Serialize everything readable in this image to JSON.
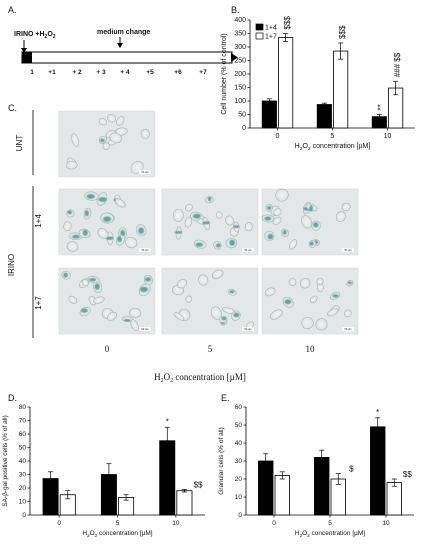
{
  "panels": {
    "a": {
      "letter": "A.",
      "treatment_label_main": "IRINO +H",
      "treatment_label_sub": "2",
      "treatment_label_end": "O",
      "treatment_label_sub2": "2",
      "medium_change_label": "medium change",
      "days": [
        "1",
        "+1",
        "+ 2",
        "+ 3",
        "+ 4",
        "+5",
        "+6",
        "+7"
      ]
    },
    "b": {
      "letter": "B."
    },
    "c": {
      "letter": "C.",
      "row_labels": [
        "UNT",
        "1+4",
        "1+7"
      ],
      "group_label": "IRINO",
      "col_labels": [
        "0",
        "5",
        "10"
      ],
      "scale_bar_text": "50 µm",
      "xlabel_main": "H",
      "xlabel_sub": "2",
      "xlabel_mid": "O",
      "xlabel_sub2": "2",
      "xlabel_end": " concentration [µM]"
    },
    "d": {
      "letter": "D."
    },
    "e": {
      "letter": "E."
    }
  },
  "chart_data": [
    {
      "id": "B",
      "type": "bar",
      "categories": [
        "0",
        "5",
        "10"
      ],
      "series": [
        {
          "name": "1+4",
          "color": "#000000",
          "values": [
            100,
            87,
            42
          ],
          "errors": [
            8,
            5,
            8
          ]
        },
        {
          "name": "1+7",
          "color": "#ffffff",
          "values": [
            335,
            285,
            148
          ],
          "errors": [
            15,
            30,
            25
          ]
        }
      ],
      "annotations": [
        {
          "category": "0",
          "series": "1+7",
          "text": "$$$"
        },
        {
          "category": "5",
          "series": "1+7",
          "text": "$$$"
        },
        {
          "category": "10",
          "series": "1+4",
          "text": "**"
        },
        {
          "category": "10",
          "series": "1+7",
          "text": "###  $$"
        }
      ],
      "ylabel": "Cell number (% of control)",
      "xlabel": "H2O2 concentration [µM]",
      "ylim": [
        0,
        400
      ],
      "yticks": [
        0,
        50,
        100,
        150,
        200,
        250,
        300,
        350,
        400
      ],
      "legend": "top-left"
    },
    {
      "id": "D",
      "type": "bar",
      "categories": [
        "0",
        "5",
        "10"
      ],
      "series": [
        {
          "name": "",
          "color": "#000000",
          "values": [
            27,
            30,
            55
          ],
          "errors": [
            5,
            8,
            10
          ]
        },
        {
          "name": "",
          "color": "#ffffff",
          "values": [
            15,
            13,
            18
          ],
          "errors": [
            3,
            2,
            1
          ]
        }
      ],
      "annotations": [
        {
          "category": "10",
          "series": 0,
          "text": "*"
        },
        {
          "category": "10",
          "series": 1,
          "text": "$$"
        }
      ],
      "ylabel": "SA-β-gal positive cells (% of all)",
      "xlabel": "H2O2 concentration [µM]",
      "ylim": [
        0,
        80
      ],
      "yticks": [
        0,
        10,
        20,
        30,
        40,
        50,
        60,
        70,
        80
      ]
    },
    {
      "id": "E",
      "type": "bar",
      "categories": [
        "0",
        "5",
        "10"
      ],
      "series": [
        {
          "name": "",
          "color": "#000000",
          "values": [
            30,
            32,
            49
          ],
          "errors": [
            4,
            4,
            5
          ]
        },
        {
          "name": "",
          "color": "#ffffff",
          "values": [
            22,
            20,
            18
          ],
          "errors": [
            2,
            3,
            2
          ]
        }
      ],
      "annotations": [
        {
          "category": "10",
          "series": 0,
          "text": "*"
        },
        {
          "category": "5",
          "series": 1,
          "text": "$"
        },
        {
          "category": "10",
          "series": 1,
          "text": "$$"
        }
      ],
      "ylabel": "Granular cells (% of all)",
      "xlabel": "H2O2 concentration [µM]",
      "ylim": [
        0,
        60
      ],
      "yticks": [
        0,
        10,
        20,
        30,
        40,
        50,
        60
      ]
    }
  ]
}
